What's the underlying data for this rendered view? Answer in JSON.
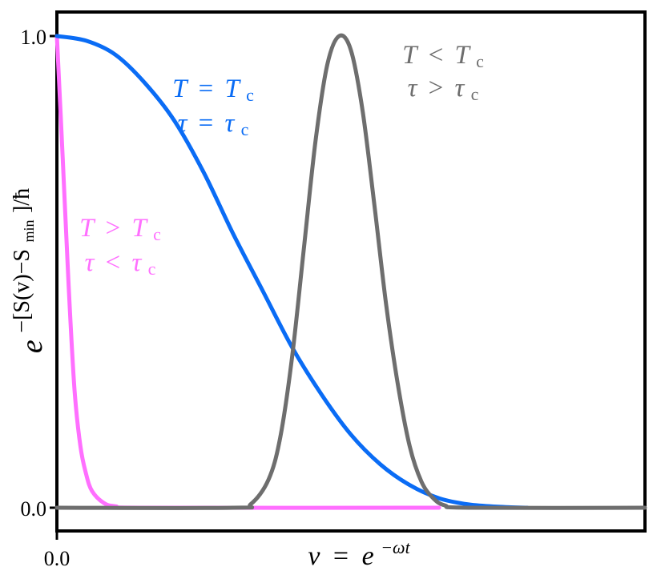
{
  "chart_data": {
    "type": "line",
    "xlabel": "v = e^{-ωt}",
    "ylabel": "e^{-[S(v)-S_min]/ħ}",
    "xlim": [
      0.0,
      1.0
    ],
    "ylim": [
      -0.05,
      1.05
    ],
    "grid": false,
    "legend": "none (inline annotations)",
    "x_ticks": [
      {
        "value": 0.0,
        "label": "0.0"
      }
    ],
    "y_ticks": [
      {
        "value": 0.0,
        "label": "0.0"
      },
      {
        "value": 1.0,
        "label": "1.0"
      }
    ],
    "series": [
      {
        "color": "#ff6fff",
        "annotation": [
          "T > T_c",
          "τ < τ_c"
        ],
        "points": [
          [
            0.0,
            1.0
          ],
          [
            0.01,
            0.74
          ],
          [
            0.02,
            0.47
          ],
          [
            0.03,
            0.25
          ],
          [
            0.04,
            0.13
          ],
          [
            0.05,
            0.07
          ],
          [
            0.06,
            0.035
          ],
          [
            0.08,
            0.01
          ],
          [
            0.1,
            0.003
          ],
          [
            0.15,
            0.0
          ],
          [
            0.65,
            0.0
          ]
        ]
      },
      {
        "color": "#0a6cf5",
        "annotation": [
          "T = T_c",
          "τ = τ_c"
        ],
        "points": [
          [
            0.0,
            1.0
          ],
          [
            0.05,
            0.99
          ],
          [
            0.1,
            0.96
          ],
          [
            0.15,
            0.9
          ],
          [
            0.2,
            0.82
          ],
          [
            0.25,
            0.71
          ],
          [
            0.3,
            0.58
          ],
          [
            0.35,
            0.46
          ],
          [
            0.4,
            0.34
          ],
          [
            0.45,
            0.24
          ],
          [
            0.5,
            0.155
          ],
          [
            0.55,
            0.092
          ],
          [
            0.6,
            0.048
          ],
          [
            0.65,
            0.02
          ],
          [
            0.7,
            0.007
          ],
          [
            0.75,
            0.002
          ],
          [
            0.8,
            0.0
          ]
        ]
      },
      {
        "color": "#6e6e6e",
        "annotation": [
          "T < T_c",
          "τ > τ_c"
        ],
        "points": [
          [
            0.0,
            0.0
          ],
          [
            0.3,
            0.0
          ],
          [
            0.33,
            0.008
          ],
          [
            0.36,
            0.06
          ],
          [
            0.38,
            0.15
          ],
          [
            0.4,
            0.32
          ],
          [
            0.42,
            0.55
          ],
          [
            0.44,
            0.78
          ],
          [
            0.46,
            0.94
          ],
          [
            0.48,
            1.0
          ],
          [
            0.5,
            0.97
          ],
          [
            0.52,
            0.84
          ],
          [
            0.54,
            0.64
          ],
          [
            0.56,
            0.43
          ],
          [
            0.58,
            0.26
          ],
          [
            0.6,
            0.13
          ],
          [
            0.62,
            0.055
          ],
          [
            0.64,
            0.02
          ],
          [
            0.66,
            0.005
          ],
          [
            0.7,
            0.0
          ],
          [
            1.0,
            0.0
          ]
        ]
      }
    ]
  },
  "labels": {
    "y_tick_top": "1.0",
    "y_tick_bottom": "0.0",
    "x_tick_left": "0.0",
    "x_axis_v": "v",
    "x_axis_eq": "=",
    "x_axis_e": "e",
    "x_axis_exp": "−ωt",
    "y_axis_e": "e",
    "y_axis_exp": "−[S(v)−S",
    "y_axis_sub": "min",
    "y_axis_tail": "]/ħ",
    "ann_pink_1_T": "T",
    "ann_pink_1_op": ">",
    "ann_pink_1_Tc": "T",
    "ann_pink_1_sub": "c",
    "ann_pink_2_t": "τ",
    "ann_pink_2_op": "<",
    "ann_pink_2_tc": "τ",
    "ann_pink_2_sub": "c",
    "ann_blue_1_T": "T",
    "ann_blue_1_op": "=",
    "ann_blue_1_Tc": "T",
    "ann_blue_1_sub": "c",
    "ann_blue_2_t": "τ",
    "ann_blue_2_op": "=",
    "ann_blue_2_tc": "τ",
    "ann_blue_2_sub": "c",
    "ann_gray_1_T": "T",
    "ann_gray_1_op": "<",
    "ann_gray_1_Tc": "T",
    "ann_gray_1_sub": "c",
    "ann_gray_2_t": "τ",
    "ann_gray_2_op": ">",
    "ann_gray_2_tc": "τ",
    "ann_gray_2_sub": "c"
  }
}
